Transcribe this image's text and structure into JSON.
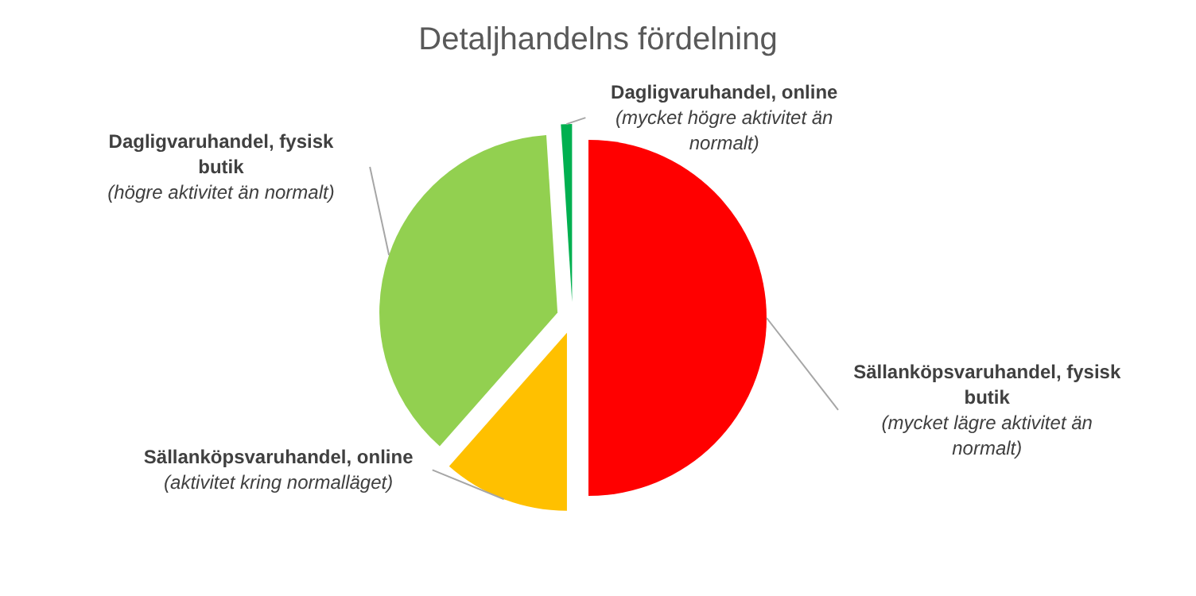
{
  "chart_data": {
    "type": "pie",
    "title": "Detaljhandelns fördelning",
    "categories": [
      "Sällanköpsvaruhandel, fysisk butik",
      "Sällanköpsvaruhandel, online",
      "Dagligvaruhandel, fysisk butik",
      "Dagligvaruhandel, online"
    ],
    "values": [
      50,
      11.5,
      37.5,
      1
    ],
    "annotations": [
      "(mycket lägre aktivitet än normalt)",
      "(aktivitet kring normalläget)",
      "(högre aktivitet än normalt)",
      "(mycket högre aktivitet än normalt)"
    ],
    "colors": [
      "#ff0000",
      "#ffc000",
      "#92d050",
      "#00b050"
    ]
  }
}
